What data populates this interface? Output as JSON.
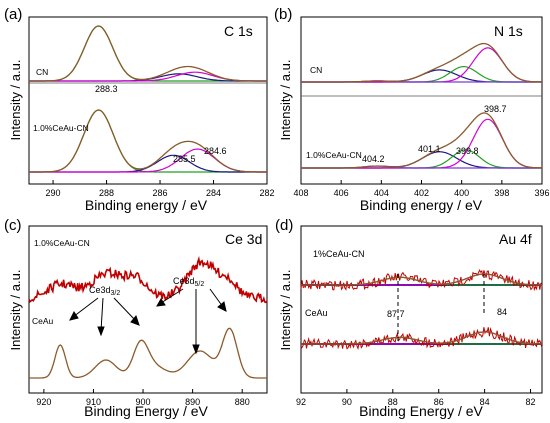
{
  "colors": {
    "raw": "#c00000",
    "envelope": "#8b5a2b",
    "magenta": "#d400d4",
    "green": "#22a022",
    "navy": "#1a1a80",
    "baseline_blue": "#3b3bff",
    "purple": "#7a3fd0",
    "axis": "#000000"
  },
  "chart_data": [
    {
      "panel": "(a)",
      "type": "line",
      "title": "C 1s",
      "xlabel": "Binding energy / eV",
      "ylabel": "Intensity / a.u.",
      "xlim": [
        290.9,
        282.0
      ],
      "x_reversed": true,
      "xticks": [
        "290",
        "288",
        "286",
        "284",
        "282"
      ],
      "grid": false,
      "series": [
        {
          "name": "CN",
          "peaks": [
            {
              "center": 288.3,
              "fwhm": 1.25,
              "height": 1.0,
              "color": "green"
            },
            {
              "center": 285.3,
              "fwhm": 1.6,
              "height": 0.13,
              "color": "navy"
            },
            {
              "center": 284.7,
              "fwhm": 1.6,
              "height": 0.16,
              "color": "magenta"
            }
          ]
        },
        {
          "name": "1.0%CeAu-CN",
          "peaks": [
            {
              "center": 288.3,
              "fwhm": 1.3,
              "height": 1.0,
              "color": "green"
            },
            {
              "center": 285.5,
              "fwhm": 1.4,
              "height": 0.27,
              "color": "navy"
            },
            {
              "center": 284.6,
              "fwhm": 1.5,
              "height": 0.37,
              "color": "magenta"
            }
          ]
        }
      ],
      "annotations": [
        "288.3",
        "285.5",
        "284.6"
      ]
    },
    {
      "panel": "(b)",
      "type": "line",
      "title": "N 1s",
      "xlabel": "Binding energy / eV",
      "ylabel": "Intensity / a.u.",
      "xlim": [
        408.0,
        396.0
      ],
      "x_reversed": true,
      "xticks": [
        "408",
        "406",
        "404",
        "402",
        "400",
        "398",
        "396"
      ],
      "grid": false,
      "series": [
        {
          "name": "CN",
          "peaks": [
            {
              "center": 401.1,
              "fwhm": 2.0,
              "height": 0.22,
              "color": "navy"
            },
            {
              "center": 399.9,
              "fwhm": 1.6,
              "height": 0.28,
              "color": "green"
            },
            {
              "center": 398.7,
              "fwhm": 1.7,
              "height": 0.62,
              "color": "magenta"
            },
            {
              "center": 404.2,
              "fwhm": 1.5,
              "height": 0.02,
              "color": "purple"
            }
          ]
        },
        {
          "name": "1.0%CeAu-CN",
          "peaks": [
            {
              "center": 401.1,
              "fwhm": 2.0,
              "height": 0.25,
              "color": "navy"
            },
            {
              "center": 399.8,
              "fwhm": 1.6,
              "height": 0.28,
              "color": "green"
            },
            {
              "center": 398.7,
              "fwhm": 1.7,
              "height": 0.75,
              "color": "magenta"
            },
            {
              "center": 404.2,
              "fwhm": 1.5,
              "height": 0.03,
              "color": "purple"
            }
          ]
        }
      ],
      "annotations": [
        "404.2",
        "401.1",
        "399.8",
        "398.7"
      ]
    },
    {
      "panel": "(c)",
      "type": "line",
      "title": "Ce 3d",
      "xlabel": "Binding Energy / eV",
      "ylabel": "Intensity / a.u.",
      "xlim": [
        923.0,
        875.0
      ],
      "x_reversed": true,
      "xticks": [
        "920",
        "910",
        "900",
        "890",
        "880"
      ],
      "grid": false,
      "series": [
        {
          "name": "1.0%CeAu-CN",
          "peaks": [
            {
              "center": 916.5,
              "fwhm": 6.0,
              "height": 0.3
            },
            {
              "center": 907.0,
              "fwhm": 8.0,
              "height": 0.55
            },
            {
              "center": 901.0,
              "fwhm": 5.0,
              "height": 0.35
            },
            {
              "center": 888.0,
              "fwhm": 7.0,
              "height": 0.8
            },
            {
              "center": 882.5,
              "fwhm": 4.0,
              "height": 0.3
            }
          ]
        },
        {
          "name": "CeAu",
          "peaks": [
            {
              "center": 916.7,
              "fwhm": 2.5,
              "height": 0.55
            },
            {
              "center": 907.5,
              "fwhm": 5.0,
              "height": 0.3
            },
            {
              "center": 900.5,
              "fwhm": 3.5,
              "height": 0.5
            },
            {
              "center": 898.0,
              "fwhm": 6.0,
              "height": 0.2
            },
            {
              "center": 888.5,
              "fwhm": 6.0,
              "height": 0.45
            },
            {
              "center": 882.5,
              "fwhm": 3.5,
              "height": 0.8
            }
          ]
        }
      ],
      "annotations": [
        "Ce3d3/2",
        "Ce3d5/2"
      ]
    },
    {
      "panel": "(d)",
      "type": "line",
      "title": "Au 4f",
      "xlabel": "Binding Energy / eV",
      "ylabel": "Intensity / a.u.",
      "xlim": [
        92.0,
        81.5
      ],
      "x_reversed": true,
      "xticks": [
        "92",
        "90",
        "88",
        "86",
        "84",
        "82"
      ],
      "grid": false,
      "series": [
        {
          "name": "1%CeAu-CN",
          "peaks": [
            {
              "center": 87.7,
              "fwhm": 1.8,
              "height": 0.35,
              "color": "green"
            },
            {
              "center": 84.0,
              "fwhm": 1.8,
              "height": 0.5,
              "color": "magenta"
            }
          ]
        },
        {
          "name": "CeAu",
          "peaks": [
            {
              "center": 87.7,
              "fwhm": 1.8,
              "height": 0.3,
              "color": "green"
            },
            {
              "center": 84.0,
              "fwhm": 1.8,
              "height": 0.55,
              "color": "magenta"
            }
          ]
        }
      ],
      "annotations": [
        "87.7",
        "84"
      ]
    }
  ],
  "labels": {
    "a": {
      "panel": "(a)",
      "title": "C 1s",
      "xlabel": "Binding energy / eV",
      "ylabel": "Intensity / a.u.",
      "ticks": [
        "290",
        "288",
        "286",
        "284",
        "282"
      ],
      "s1": "CN",
      "s2": "1.0%CeAu-CN",
      "p1": "288.3",
      "p2": "285.5",
      "p3": "284.6"
    },
    "b": {
      "panel": "(b)",
      "title": "N 1s",
      "xlabel": "Binding energy / eV",
      "ylabel": "Intensity / a.u.",
      "ticks": [
        "408",
        "406",
        "404",
        "402",
        "400",
        "398",
        "396"
      ],
      "s1": "CN",
      "s2": "1.0%CeAu-CN",
      "p1": "404.2",
      "p2": "401.1",
      "p3": "399.8",
      "p4": "398.7"
    },
    "c": {
      "panel": "(c)",
      "title": "Ce 3d",
      "xlabel": "Binding Energy / eV",
      "ylabel": "Intensity / a.u.",
      "ticks": [
        "920",
        "910",
        "900",
        "890",
        "880"
      ],
      "s1": "1.0%CeAu-CN",
      "s2": "CeAu",
      "a1_main": "Ce3d",
      "a1_sub": "3/2",
      "a2_main": "Ce3d",
      "a2_sub": "5/2"
    },
    "d": {
      "panel": "(d)",
      "title": "Au 4f",
      "xlabel": "Binding Energy / eV",
      "ylabel": "Intensity / a.u.",
      "ticks": [
        "92",
        "90",
        "88",
        "86",
        "84",
        "82"
      ],
      "s1": "1%CeAu-CN",
      "s2": "CeAu",
      "p1": "87.7",
      "p2": "84"
    }
  }
}
